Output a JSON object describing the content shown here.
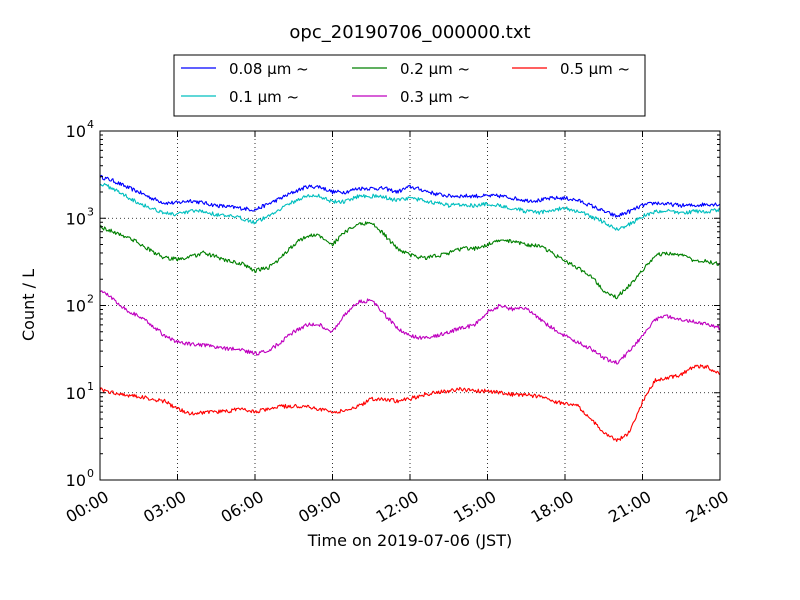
{
  "chart_data": {
    "type": "line",
    "title": "opc_20190706_000000.txt",
    "xlabel": "Time on 2019-07-06 (JST)",
    "ylabel": "Count / L",
    "x_unit": "hour",
    "xlim": [
      0,
      24
    ],
    "ylim": [
      1,
      10000
    ],
    "yscale": "log",
    "grid": true,
    "legend_position": "top-center",
    "x_ticks": [
      {
        "value": 0,
        "label": "00:00"
      },
      {
        "value": 3,
        "label": "03:00"
      },
      {
        "value": 6,
        "label": "06:00"
      },
      {
        "value": 9,
        "label": "09:00"
      },
      {
        "value": 12,
        "label": "12:00"
      },
      {
        "value": 15,
        "label": "15:00"
      },
      {
        "value": 18,
        "label": "18:00"
      },
      {
        "value": 21,
        "label": "21:00"
      },
      {
        "value": 24,
        "label": "24:00"
      }
    ],
    "y_ticks": [
      {
        "value": 1,
        "base": "10",
        "exp": "0"
      },
      {
        "value": 10,
        "base": "10",
        "exp": "1"
      },
      {
        "value": 100,
        "base": "10",
        "exp": "2"
      },
      {
        "value": 1000,
        "base": "10",
        "exp": "3"
      },
      {
        "value": 10000,
        "base": "10",
        "exp": "4"
      }
    ],
    "series": [
      {
        "name": "0.08 μm ~",
        "color": "#0000ff",
        "x": [
          0,
          0.5,
          1,
          1.5,
          2,
          2.5,
          3,
          3.5,
          4,
          4.5,
          5,
          5.5,
          6,
          6.5,
          7,
          7.5,
          8,
          8.5,
          9,
          9.5,
          10,
          10.5,
          11,
          11.5,
          12,
          12.5,
          13,
          13.5,
          14,
          14.5,
          15,
          15.5,
          16,
          16.5,
          17,
          17.5,
          18,
          18.5,
          19,
          19.5,
          20,
          20.5,
          21,
          21.5,
          22,
          22.5,
          23,
          23.5,
          24
        ],
        "values": [
          3000,
          2700,
          2300,
          2000,
          1700,
          1500,
          1500,
          1600,
          1500,
          1400,
          1350,
          1300,
          1250,
          1450,
          1700,
          2000,
          2300,
          2300,
          2000,
          2000,
          2200,
          2200,
          2200,
          2000,
          2300,
          2100,
          1900,
          1800,
          1800,
          1800,
          1800,
          1800,
          1700,
          1600,
          1600,
          1700,
          1700,
          1600,
          1400,
          1200,
          1050,
          1200,
          1400,
          1500,
          1450,
          1400,
          1400,
          1450,
          1450
        ]
      },
      {
        "name": "0.1 μm ~",
        "color": "#00bfbf",
        "x": [
          0,
          0.5,
          1,
          1.5,
          2,
          2.5,
          3,
          3.5,
          4,
          4.5,
          5,
          5.5,
          6,
          6.5,
          7,
          7.5,
          8,
          8.5,
          9,
          9.5,
          10,
          10.5,
          11,
          11.5,
          12,
          12.5,
          13,
          13.5,
          14,
          14.5,
          15,
          15.5,
          16,
          16.5,
          17,
          17.5,
          18,
          18.5,
          19,
          19.5,
          20,
          20.5,
          21,
          21.5,
          22,
          22.5,
          23,
          23.5,
          24
        ],
        "values": [
          2500,
          2200,
          1800,
          1500,
          1300,
          1150,
          1100,
          1200,
          1200,
          1100,
          1050,
          1000,
          900,
          1050,
          1300,
          1550,
          1800,
          1800,
          1550,
          1550,
          1800,
          1800,
          1750,
          1600,
          1700,
          1600,
          1500,
          1400,
          1450,
          1400,
          1450,
          1400,
          1300,
          1200,
          1150,
          1250,
          1300,
          1200,
          1050,
          900,
          750,
          850,
          1050,
          1200,
          1200,
          1150,
          1200,
          1200,
          1250
        ]
      },
      {
        "name": "0.2 μm ~",
        "color": "#008000",
        "x": [
          0,
          0.5,
          1,
          1.5,
          2,
          2.5,
          3,
          3.5,
          4,
          4.5,
          5,
          5.5,
          6,
          6.5,
          7,
          7.5,
          8,
          8.5,
          9,
          9.5,
          10,
          10.5,
          11,
          11.5,
          12,
          12.5,
          13,
          13.5,
          14,
          14.5,
          15,
          15.5,
          16,
          16.5,
          17,
          17.5,
          18,
          18.5,
          19,
          19.5,
          20,
          20.5,
          21,
          21.5,
          22,
          22.5,
          23,
          23.5,
          24
        ],
        "values": [
          800,
          700,
          620,
          520,
          420,
          350,
          340,
          360,
          400,
          360,
          320,
          300,
          250,
          270,
          350,
          500,
          630,
          630,
          500,
          700,
          850,
          900,
          650,
          450,
          380,
          350,
          370,
          400,
          450,
          450,
          500,
          550,
          550,
          500,
          480,
          400,
          320,
          270,
          220,
          150,
          125,
          170,
          250,
          380,
          400,
          380,
          330,
          320,
          300
        ]
      },
      {
        "name": "0.3 μm ~",
        "color": "#bf00bf",
        "x": [
          0,
          0.5,
          1,
          1.5,
          2,
          2.5,
          3,
          3.5,
          4,
          4.5,
          5,
          5.5,
          6,
          6.5,
          7,
          7.5,
          8,
          8.5,
          9,
          9.5,
          10,
          10.5,
          11,
          11.5,
          12,
          12.5,
          13,
          13.5,
          14,
          14.5,
          15,
          15.5,
          16,
          16.5,
          17,
          17.5,
          18,
          18.5,
          19,
          19.5,
          20,
          20.5,
          21,
          21.5,
          22,
          22.5,
          23,
          23.5,
          24
        ],
        "values": [
          150,
          120,
          90,
          75,
          60,
          45,
          38,
          36,
          35,
          33,
          32,
          31,
          28,
          30,
          38,
          50,
          60,
          60,
          50,
          80,
          110,
          115,
          80,
          55,
          45,
          42,
          45,
          50,
          55,
          60,
          85,
          100,
          90,
          95,
          70,
          55,
          45,
          38,
          32,
          25,
          22,
          30,
          45,
          70,
          75,
          70,
          65,
          62,
          55
        ]
      },
      {
        "name": "0.5 μm ~",
        "color": "#ff0000",
        "x": [
          0,
          0.5,
          1,
          1.5,
          2,
          2.5,
          3,
          3.5,
          4,
          4.5,
          5,
          5.5,
          6,
          6.5,
          7,
          7.5,
          8,
          8.5,
          9,
          9.5,
          10,
          10.5,
          11,
          11.5,
          12,
          12.5,
          13,
          13.5,
          14,
          14.5,
          15,
          15.5,
          16,
          16.5,
          17,
          17.5,
          18,
          18.5,
          19,
          19.5,
          20,
          20.5,
          21,
          21.5,
          22,
          22.5,
          23,
          23.5,
          24
        ],
        "values": [
          11,
          10,
          9.5,
          9,
          8.5,
          8,
          6.5,
          5.8,
          6,
          6,
          6.2,
          6.5,
          6,
          6.5,
          7,
          7,
          7,
          6.5,
          6,
          6.2,
          7,
          8.5,
          8.5,
          8,
          8.5,
          9.5,
          10,
          10.5,
          11,
          10.5,
          10.5,
          10,
          9.5,
          9.5,
          9,
          8,
          7.5,
          7,
          5,
          3.5,
          2.8,
          3.5,
          8,
          14,
          15,
          16,
          20,
          20,
          16
        ]
      }
    ]
  }
}
